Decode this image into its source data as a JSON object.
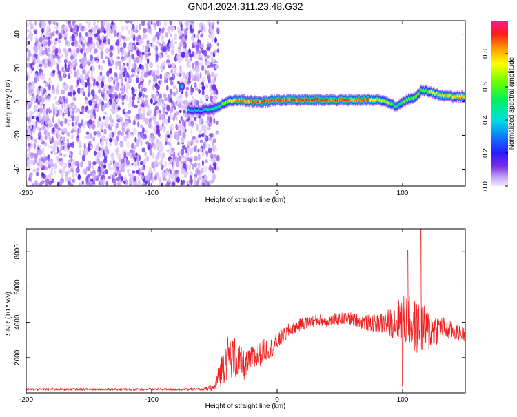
{
  "title": "GN04.2024.311.23.48.G32",
  "colors": {
    "spectrogram_ridge": "#ff2a2a",
    "noise": "#7a2ee6",
    "snr_line": "#ee2222"
  },
  "chart_data": [
    {
      "type": "heatmap",
      "xlabel": "Height of straight line (km)",
      "ylabel": "Frequency (Hz)",
      "xlim": [
        -200,
        150
      ],
      "ylim": [
        -50,
        48
      ],
      "xticks": [
        "-200",
        "-100",
        "0",
        "100"
      ],
      "xtick_values": [
        -200,
        -100,
        0,
        100
      ],
      "yticks": [
        "-40",
        "-20",
        "0",
        "20",
        "40"
      ],
      "ytick_values": [
        -40,
        -20,
        0,
        20,
        40
      ],
      "colorbar": {
        "label": "Normalized spectral amplitude",
        "range": [
          0,
          1
        ],
        "ticks": [
          "0.0",
          "0.2",
          "0.4",
          "0.6",
          "0.8"
        ],
        "tick_values": [
          0.0,
          0.2,
          0.4,
          0.6,
          0.8
        ]
      },
      "noise_region": {
        "x_from": -200,
        "x_to": -50,
        "amplitude_range": [
          0.0,
          0.15
        ]
      },
      "ridge": {
        "x": [
          -72,
          -60,
          -50,
          -45,
          -40,
          -35,
          -30,
          -20,
          -10,
          0,
          10,
          20,
          30,
          40,
          50,
          60,
          70,
          80,
          90,
          95,
          100,
          110,
          115,
          120,
          130,
          140,
          150
        ],
        "freq": [
          -5,
          -5,
          -4,
          -2,
          0,
          1,
          1,
          0,
          0,
          1,
          1,
          1,
          1,
          1,
          1,
          1,
          1,
          1,
          -1,
          -3,
          0,
          3,
          7,
          6,
          4,
          3,
          3
        ],
        "amplitude": [
          0.4,
          0.4,
          0.5,
          0.6,
          0.7,
          0.8,
          0.85,
          0.9,
          0.95,
          0.95,
          0.95,
          0.95,
          0.95,
          0.95,
          0.95,
          0.9,
          0.9,
          0.8,
          0.7,
          0.5,
          0.6,
          0.6,
          0.6,
          0.7,
          0.8,
          0.8,
          0.8
        ]
      }
    },
    {
      "type": "line",
      "xlabel": "Height of straight line (km)",
      "ylabel": "SNR (10 * v/v)",
      "xlim": [
        -200,
        150
      ],
      "ylim": [
        0,
        9300
      ],
      "xticks": [
        "-200",
        "-100",
        "0",
        "100"
      ],
      "xtick_values": [
        -200,
        -100,
        0,
        100
      ],
      "yticks": [
        "2000",
        "4000",
        "6000",
        "8000"
      ],
      "ytick_values": [
        2000,
        4000,
        6000,
        8000
      ],
      "series": [
        {
          "x": [
            -200,
            -150,
            -100,
            -60,
            -50,
            -45,
            -40,
            -35,
            -30,
            -25,
            -20,
            -15,
            -10,
            -5,
            0,
            5,
            10,
            20,
            30,
            40,
            50,
            60,
            70,
            80,
            90,
            100,
            110,
            120,
            130,
            140,
            150
          ],
          "y": [
            200,
            200,
            200,
            200,
            300,
            1200,
            2000,
            2100,
            1700,
            1500,
            1900,
            2100,
            2400,
            2500,
            2900,
            3200,
            3600,
            3900,
            4100,
            4100,
            4200,
            4200,
            4000,
            3900,
            4000,
            4200,
            3800,
            3500,
            3700,
            3500,
            3300
          ],
          "spread": [
            60,
            60,
            60,
            60,
            200,
            900,
            1300,
            1300,
            1000,
            800,
            800,
            700,
            700,
            600,
            500,
            450,
            400,
            350,
            350,
            350,
            350,
            400,
            450,
            550,
            800,
            1400,
            1600,
            1300,
            800,
            500,
            400
          ]
        }
      ]
    }
  ]
}
